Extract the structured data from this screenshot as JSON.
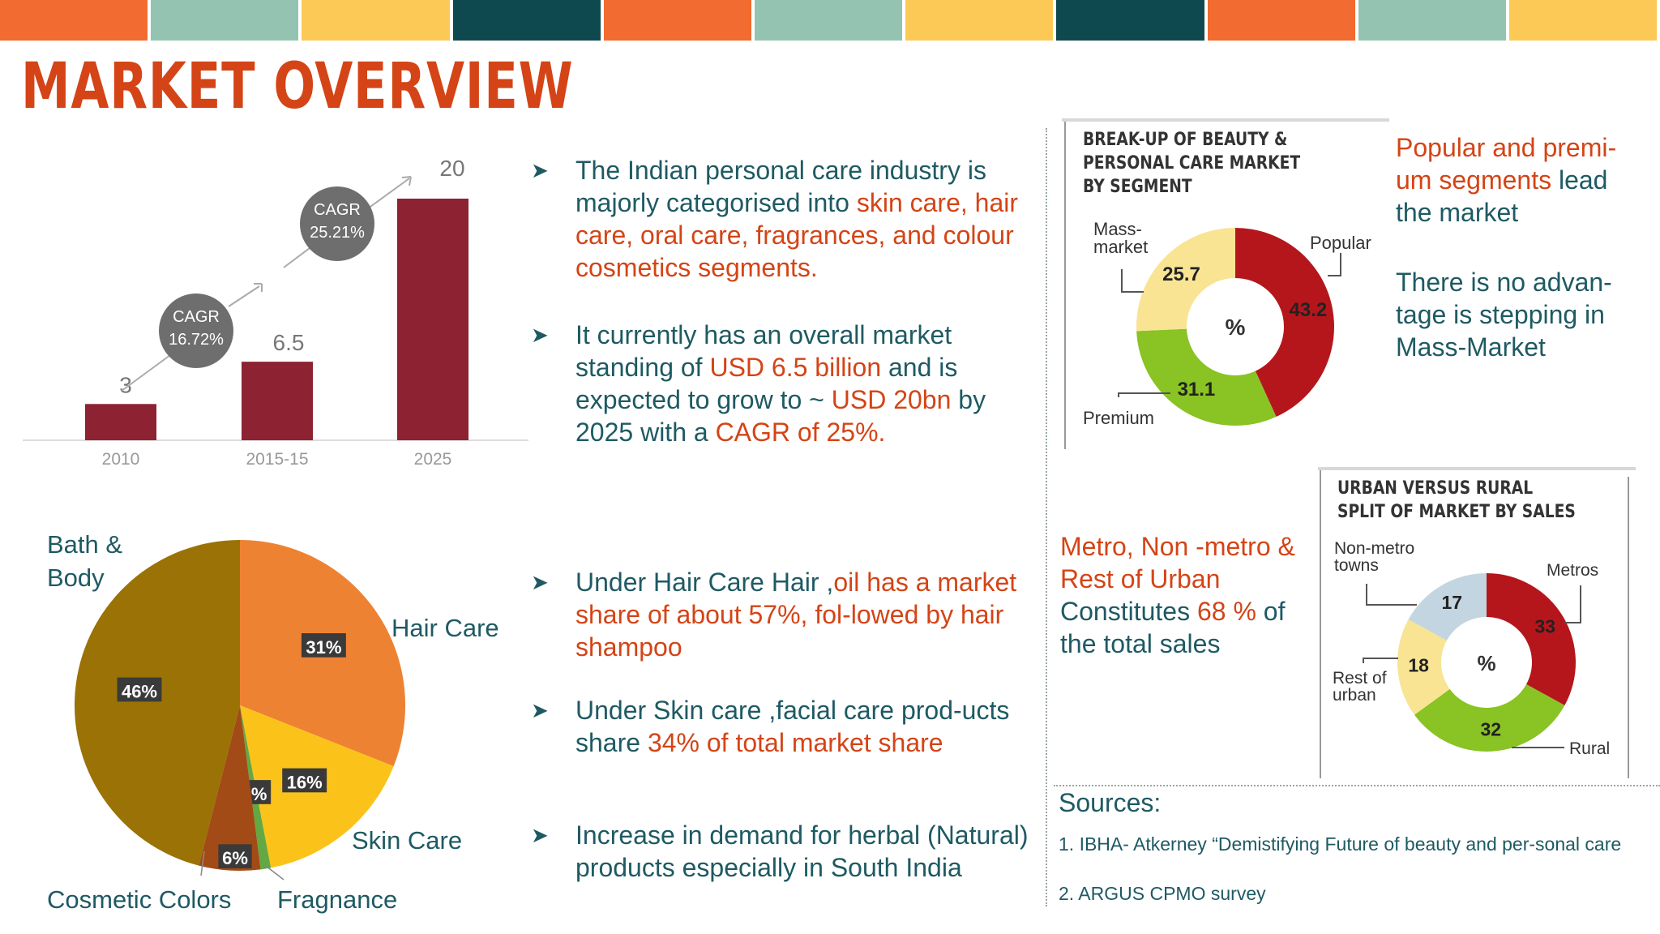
{
  "top_bar_colors": [
    "#f26b30",
    "#94c4b1",
    "#fdc956",
    "#0f4950",
    "#f26b30",
    "#94c4b1",
    "#fdc956",
    "#0f4950",
    "#f26b30",
    "#94c4b1",
    "#fdc956"
  ],
  "title": "MARKET OVERVIEW",
  "bar_chart": {
    "type": "bar",
    "categories": [
      "2010",
      "2015-15",
      "2025"
    ],
    "values": [
      3,
      6.5,
      20
    ],
    "value_labels": [
      "3",
      "6.5",
      "20"
    ],
    "bar_color": "#8c2232",
    "cagr": [
      {
        "line1": "CAGR",
        "line2": "16.72%"
      },
      {
        "line1": "CAGR",
        "line2": "25.21%"
      }
    ]
  },
  "bullets": [
    {
      "parts": [
        {
          "t": "The Indian personal care industry is majorly categorised into ",
          "hl": false
        },
        {
          "t": "skin care, hair care, oral care, fragrances, and colour cosmetics segments.",
          "hl": true
        }
      ]
    },
    {
      "parts": [
        {
          "t": "It currently has an overall market standing of ",
          "hl": false
        },
        {
          "t": "USD 6.5 billion",
          "hl": true
        },
        {
          "t": " and is expected to grow to ~ ",
          "hl": false
        },
        {
          "t": "USD 20bn",
          "hl": true
        },
        {
          "t": " by 2025 with a ",
          "hl": false
        },
        {
          "t": "CAGR of 25%.",
          "hl": true
        }
      ]
    },
    {
      "parts": [
        {
          "t": "Under Hair Care Hair ,",
          "hl": false
        },
        {
          "t": "oil has a market share of about 57%, fol-lowed by hair shampoo",
          "hl": true
        }
      ]
    },
    {
      "parts": [
        {
          "t": "Under Skin care ,facial care prod-ucts share ",
          "hl": false
        },
        {
          "t": "34% of total market share",
          "hl": true
        }
      ]
    },
    {
      "parts": [
        {
          "t": "Increase in demand for herbal (Natural) products especially in South India",
          "hl": false
        }
      ]
    }
  ],
  "pie_chart": {
    "type": "pie",
    "slices": [
      {
        "name": "Hair Care",
        "value": 31,
        "label": "31%",
        "color": "#ee8233"
      },
      {
        "name": "Skin Care",
        "value": 16,
        "label": "16%",
        "color": "#fbc31a"
      },
      {
        "name": "Fragnance",
        "value": 1,
        "label": "1%",
        "color": "#63a842"
      },
      {
        "name": "Cosmetic Colors",
        "value": 6,
        "label": "6%",
        "color": "#a34b16"
      },
      {
        "name": "Bath & Body",
        "value": 46,
        "label": "46%",
        "color": "#9a7205"
      }
    ],
    "names": {
      "bath1": "Bath &",
      "bath2": "Body",
      "hair": "Hair Care",
      "skin": "Skin Care",
      "cosmetic": "Cosmetic Colors",
      "fragnance": "Fragnance"
    }
  },
  "donut1": {
    "type": "pie",
    "title_lines": [
      "BREAK-UP OF BEAUTY &",
      "PERSONAL CARE MARKET",
      "BY SEGMENT"
    ],
    "center": "%",
    "slices": [
      {
        "name": "Popular",
        "value": 43.2,
        "label": "43.2",
        "color": "#b5161c"
      },
      {
        "name": "Premium",
        "value": 31.1,
        "label": "31.1",
        "color": "#89c324"
      },
      {
        "name": "Mass-market",
        "value": 25.7,
        "label": "25.7",
        "color": "#f8e493"
      }
    ],
    "names": {
      "popular": "Popular",
      "mass1": "Mass-",
      "mass2": "market",
      "premium": "Premium"
    }
  },
  "donut2": {
    "type": "pie",
    "title_lines": [
      "URBAN VERSUS RURAL",
      "SPLIT OF MARKET BY SALES"
    ],
    "center": "%",
    "slices": [
      {
        "name": "Metros",
        "value": 33,
        "label": "33",
        "color": "#b5161c"
      },
      {
        "name": "Rural",
        "value": 32,
        "label": "32",
        "color": "#89c324"
      },
      {
        "name": "Rest of urban",
        "value": 18,
        "label": "18",
        "color": "#f8e493"
      },
      {
        "name": "Non-metro towns",
        "value": 17,
        "label": "17",
        "color": "#c3d5e0"
      }
    ],
    "names": {
      "metros": "Metros",
      "rural": "Rural",
      "rest1": "Rest of",
      "rest2": "urban",
      "non1": "Non-metro",
      "non2": "towns"
    }
  },
  "side_text_1": {
    "hl1": "Popular and premi-um segments",
    "t1": " lead the market"
  },
  "side_text_2": "There is no advan-tage is stepping in Mass-Market",
  "side_text_3": {
    "hl1": "Metro, Non -metro & Rest of Urban",
    "t1": " Constitutes ",
    "hl2": "68 %",
    "t2": " of the total sales"
  },
  "sources": {
    "heading": "Sources:",
    "items": [
      "1. IBHA- Atkerney “Demistifying Future of beauty and per-sonal care",
      "2. ARGUS CPMO survey"
    ]
  }
}
